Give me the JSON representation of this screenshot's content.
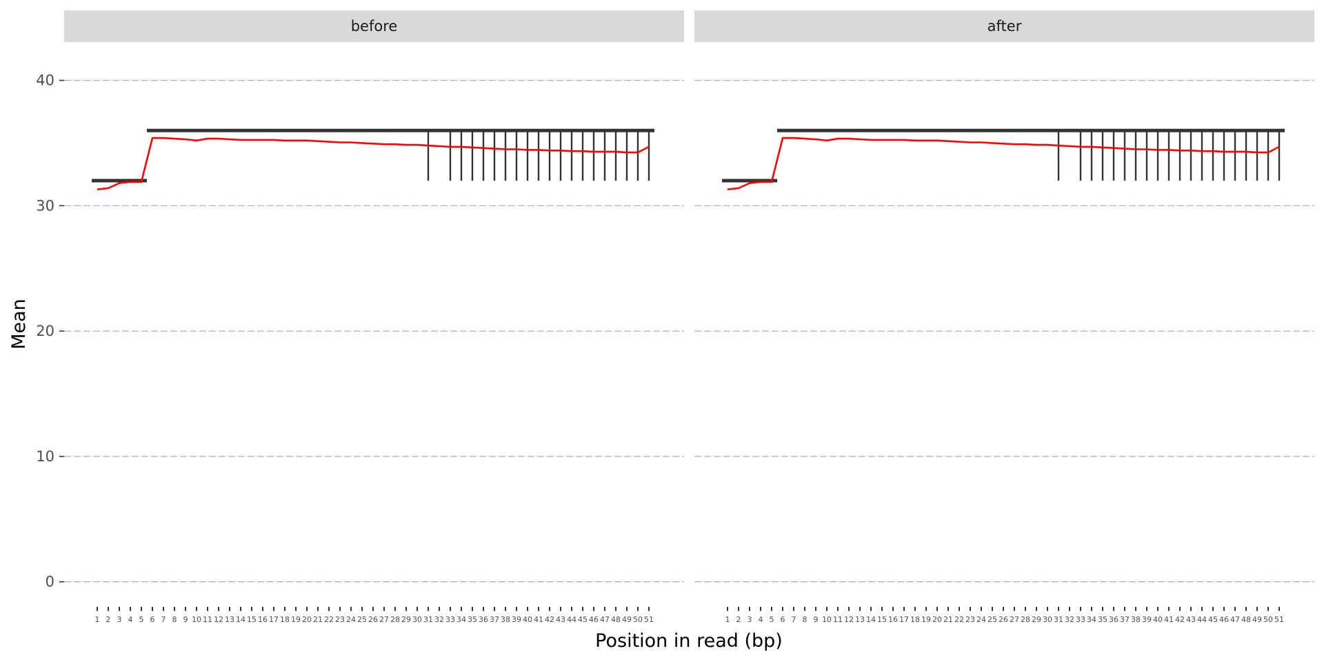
{
  "chart_data": {
    "type": "line",
    "xlabel": "Position in read (bp)",
    "ylabel": "Mean",
    "ylim": [
      -2,
      43
    ],
    "yticks": [
      0,
      10,
      20,
      30,
      40
    ],
    "x": [
      1,
      2,
      3,
      4,
      5,
      6,
      7,
      8,
      9,
      10,
      11,
      12,
      13,
      14,
      15,
      16,
      17,
      18,
      19,
      20,
      21,
      22,
      23,
      24,
      25,
      26,
      27,
      28,
      29,
      30,
      31,
      32,
      33,
      34,
      35,
      36,
      37,
      38,
      39,
      40,
      41,
      42,
      43,
      44,
      45,
      46,
      47,
      48,
      49,
      50,
      51
    ],
    "grid": true,
    "colors": {
      "mean_line": "#ff0000",
      "range_bars": "#333333",
      "grid": "#a0a8f0",
      "strip_bg": "#d9d9d9"
    },
    "facets": [
      {
        "label": "before",
        "series": [
          {
            "values": [
              31.3,
              31.4,
              31.8,
              31.9,
              31.9,
              35.4,
              35.4,
              35.35,
              35.3,
              35.2,
              35.35,
              35.35,
              35.3,
              35.25,
              35.25,
              35.25,
              35.25,
              35.2,
              35.2,
              35.2,
              35.15,
              35.1,
              35.05,
              35.05,
              35.0,
              34.95,
              34.9,
              34.9,
              34.85,
              34.85,
              34.8,
              34.75,
              34.7,
              34.7,
              34.65,
              34.6,
              34.55,
              34.5,
              34.5,
              34.45,
              34.45,
              34.4,
              34.4,
              34.35,
              34.35,
              34.3,
              34.3,
              34.3,
              34.25,
              34.25,
              34.7
            ]
          }
        ],
        "range_low": [
          32,
          32,
          32,
          32,
          32,
          36,
          36,
          36,
          36,
          36,
          36,
          36,
          36,
          36,
          36,
          36,
          36,
          36,
          36,
          36,
          36,
          36,
          36,
          36,
          36,
          36,
          36,
          36,
          36,
          36,
          32,
          36,
          32,
          32,
          32,
          32,
          32,
          32,
          32,
          32,
          32,
          32,
          32,
          32,
          32,
          32,
          32,
          32,
          32,
          32,
          32
        ],
        "range_high": [
          32,
          32,
          32,
          32,
          32,
          36,
          36,
          36,
          36,
          36,
          36,
          36,
          36,
          36,
          36,
          36,
          36,
          36,
          36,
          36,
          36,
          36,
          36,
          36,
          36,
          36,
          36,
          36,
          36,
          36,
          36,
          36,
          36,
          36,
          36,
          36,
          36,
          36,
          36,
          36,
          36,
          36,
          36,
          36,
          36,
          36,
          36,
          36,
          36,
          36,
          36
        ]
      },
      {
        "label": "after",
        "series": [
          {
            "values": [
              31.3,
              31.4,
              31.8,
              31.9,
              31.9,
              35.4,
              35.4,
              35.35,
              35.3,
              35.2,
              35.35,
              35.35,
              35.3,
              35.25,
              35.25,
              35.25,
              35.25,
              35.2,
              35.2,
              35.2,
              35.15,
              35.1,
              35.05,
              35.05,
              35.0,
              34.95,
              34.9,
              34.9,
              34.85,
              34.85,
              34.8,
              34.75,
              34.7,
              34.7,
              34.65,
              34.6,
              34.55,
              34.5,
              34.5,
              34.45,
              34.45,
              34.4,
              34.4,
              34.35,
              34.35,
              34.3,
              34.3,
              34.3,
              34.25,
              34.25,
              34.7
            ]
          }
        ],
        "range_low": [
          32,
          32,
          32,
          32,
          32,
          36,
          36,
          36,
          36,
          36,
          36,
          36,
          36,
          36,
          36,
          36,
          36,
          36,
          36,
          36,
          36,
          36,
          36,
          36,
          36,
          36,
          36,
          36,
          36,
          36,
          32,
          36,
          32,
          32,
          32,
          32,
          32,
          32,
          32,
          32,
          32,
          32,
          32,
          32,
          32,
          32,
          32,
          32,
          32,
          32,
          32
        ],
        "range_high": [
          32,
          32,
          32,
          32,
          32,
          36,
          36,
          36,
          36,
          36,
          36,
          36,
          36,
          36,
          36,
          36,
          36,
          36,
          36,
          36,
          36,
          36,
          36,
          36,
          36,
          36,
          36,
          36,
          36,
          36,
          36,
          36,
          36,
          36,
          36,
          36,
          36,
          36,
          36,
          36,
          36,
          36,
          36,
          36,
          36,
          36,
          36,
          36,
          36,
          36,
          36
        ]
      }
    ]
  }
}
